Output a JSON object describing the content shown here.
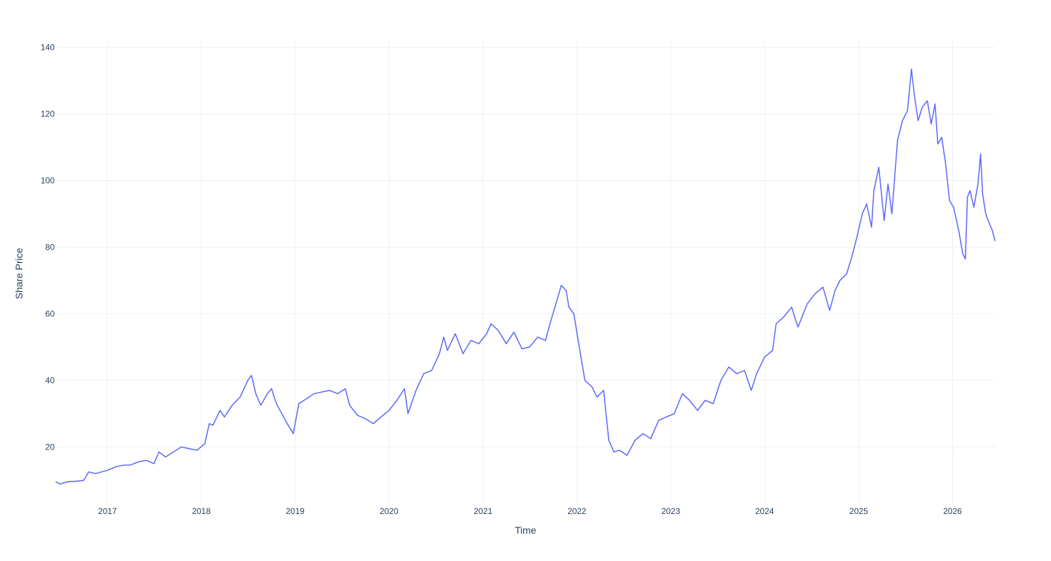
{
  "chart_data": {
    "type": "line",
    "title": "",
    "xlabel": "Time",
    "ylabel": "Share Price",
    "grid": true,
    "xlim": [
      "2016-06-15",
      "2026-06-15"
    ],
    "ylim": [
      2.6,
      141.6
    ],
    "x_ticks": [
      {
        "value": "2017-01-01",
        "label": "2017"
      },
      {
        "value": "2018-01-01",
        "label": "2018"
      },
      {
        "value": "2019-01-01",
        "label": "2019"
      },
      {
        "value": "2020-01-01",
        "label": "2020"
      },
      {
        "value": "2021-01-01",
        "label": "2021"
      },
      {
        "value": "2022-01-01",
        "label": "2022"
      },
      {
        "value": "2023-01-01",
        "label": "2023"
      },
      {
        "value": "2024-01-01",
        "label": "2024"
      },
      {
        "value": "2025-01-01",
        "label": "2025"
      },
      {
        "value": "2026-01-01",
        "label": "2026"
      }
    ],
    "y_ticks": [
      {
        "value": 20,
        "label": "20"
      },
      {
        "value": 40,
        "label": "40"
      },
      {
        "value": 60,
        "label": "60"
      },
      {
        "value": 80,
        "label": "80"
      },
      {
        "value": 100,
        "label": "100"
      },
      {
        "value": 120,
        "label": "120"
      },
      {
        "value": 140,
        "label": "140"
      }
    ],
    "colors": {
      "series": "#636efa",
      "grid": "#ebf0f8",
      "text": "#2a3f5f"
    },
    "series": [
      {
        "color": "#636efa",
        "points": [
          [
            "2016-06-15",
            9.5
          ],
          [
            "2016-07-01",
            8.9
          ],
          [
            "2016-08-01",
            9.6
          ],
          [
            "2016-09-01",
            9.7
          ],
          [
            "2016-10-01",
            10.0
          ],
          [
            "2016-10-20",
            12.5
          ],
          [
            "2016-11-15",
            12.0
          ],
          [
            "2017-01-01",
            13.0
          ],
          [
            "2017-02-01",
            14.0
          ],
          [
            "2017-03-01",
            14.5
          ],
          [
            "2017-04-01",
            14.6
          ],
          [
            "2017-05-01",
            15.5
          ],
          [
            "2017-06-01",
            16.0
          ],
          [
            "2017-07-01",
            15.0
          ],
          [
            "2017-07-20",
            18.5
          ],
          [
            "2017-08-15",
            17.0
          ],
          [
            "2017-09-15",
            18.5
          ],
          [
            "2017-10-15",
            20.0
          ],
          [
            "2017-11-15",
            19.5
          ],
          [
            "2017-12-15",
            19.0
          ],
          [
            "2018-01-15",
            21.0
          ],
          [
            "2018-02-01",
            27.0
          ],
          [
            "2018-02-15",
            26.5
          ],
          [
            "2018-03-15",
            31.0
          ],
          [
            "2018-04-01",
            29.0
          ],
          [
            "2018-05-01",
            32.5
          ],
          [
            "2018-06-01",
            35.0
          ],
          [
            "2018-07-01",
            40.0
          ],
          [
            "2018-07-15",
            41.5
          ],
          [
            "2018-08-01",
            36.0
          ],
          [
            "2018-08-20",
            32.5
          ],
          [
            "2018-09-15",
            36.0
          ],
          [
            "2018-10-01",
            37.5
          ],
          [
            "2018-10-20",
            33.0
          ],
          [
            "2018-11-10",
            30.0
          ],
          [
            "2018-12-01",
            27.0
          ],
          [
            "2018-12-25",
            24.0
          ],
          [
            "2019-01-15",
            33.0
          ],
          [
            "2019-02-15",
            34.5
          ],
          [
            "2019-03-15",
            36.0
          ],
          [
            "2019-04-15",
            36.5
          ],
          [
            "2019-05-15",
            37.0
          ],
          [
            "2019-06-15",
            36.0
          ],
          [
            "2019-07-15",
            37.5
          ],
          [
            "2019-08-01",
            32.5
          ],
          [
            "2019-09-01",
            29.5
          ],
          [
            "2019-10-01",
            28.5
          ],
          [
            "2019-11-01",
            27.0
          ],
          [
            "2019-12-01",
            29.0
          ],
          [
            "2020-01-01",
            31.0
          ],
          [
            "2020-02-01",
            34.0
          ],
          [
            "2020-03-01",
            37.5
          ],
          [
            "2020-03-15",
            30.0
          ],
          [
            "2020-04-15",
            37.0
          ],
          [
            "2020-05-15",
            42.0
          ],
          [
            "2020-06-15",
            43.0
          ],
          [
            "2020-07-15",
            48.0
          ],
          [
            "2020-08-01",
            53.0
          ],
          [
            "2020-08-15",
            49.0
          ],
          [
            "2020-09-15",
            54.0
          ],
          [
            "2020-10-15",
            48.0
          ],
          [
            "2020-11-15",
            52.0
          ],
          [
            "2020-12-15",
            51.0
          ],
          [
            "2021-01-15",
            54.0
          ],
          [
            "2021-02-01",
            57.0
          ],
          [
            "2021-03-01",
            55.0
          ],
          [
            "2021-04-01",
            51.0
          ],
          [
            "2021-05-01",
            54.5
          ],
          [
            "2021-06-01",
            49.5
          ],
          [
            "2021-07-01",
            50.0
          ],
          [
            "2021-08-01",
            53.0
          ],
          [
            "2021-09-01",
            52.0
          ],
          [
            "2021-09-20",
            57.5
          ],
          [
            "2021-10-15",
            64.0
          ],
          [
            "2021-11-01",
            68.5
          ],
          [
            "2021-11-20",
            67.0
          ],
          [
            "2021-12-01",
            62.0
          ],
          [
            "2021-12-20",
            60.0
          ],
          [
            "2022-01-10",
            50.0
          ],
          [
            "2022-02-01",
            40.0
          ],
          [
            "2022-03-01",
            38.0
          ],
          [
            "2022-03-20",
            35.0
          ],
          [
            "2022-04-15",
            37.0
          ],
          [
            "2022-05-05",
            22.0
          ],
          [
            "2022-05-25",
            18.5
          ],
          [
            "2022-06-15",
            19.0
          ],
          [
            "2022-07-15",
            17.5
          ],
          [
            "2022-08-15",
            22.0
          ],
          [
            "2022-09-15",
            24.0
          ],
          [
            "2022-10-15",
            22.5
          ],
          [
            "2022-11-15",
            28.0
          ],
          [
            "2022-12-15",
            29.0
          ],
          [
            "2023-01-15",
            30.0
          ],
          [
            "2023-02-15",
            36.0
          ],
          [
            "2023-03-15",
            34.0
          ],
          [
            "2023-04-15",
            31.0
          ],
          [
            "2023-05-15",
            34.0
          ],
          [
            "2023-06-15",
            33.0
          ],
          [
            "2023-07-15",
            40.0
          ],
          [
            "2023-08-15",
            44.0
          ],
          [
            "2023-09-15",
            42.0
          ],
          [
            "2023-10-15",
            43.0
          ],
          [
            "2023-11-10",
            37.0
          ],
          [
            "2023-12-01",
            42.0
          ],
          [
            "2024-01-01",
            47.0
          ],
          [
            "2024-02-01",
            49.0
          ],
          [
            "2024-02-15",
            57.0
          ],
          [
            "2024-03-15",
            59.0
          ],
          [
            "2024-04-15",
            62.0
          ],
          [
            "2024-05-10",
            56.0
          ],
          [
            "2024-06-15",
            63.0
          ],
          [
            "2024-07-15",
            66.0
          ],
          [
            "2024-08-15",
            68.0
          ],
          [
            "2024-09-10",
            61.0
          ],
          [
            "2024-10-01",
            67.0
          ],
          [
            "2024-10-20",
            70.0
          ],
          [
            "2024-11-15",
            72.0
          ],
          [
            "2024-12-05",
            77.0
          ],
          [
            "2024-12-25",
            83.0
          ],
          [
            "2025-01-15",
            90.0
          ],
          [
            "2025-02-01",
            93.0
          ],
          [
            "2025-02-20",
            86.0
          ],
          [
            "2025-03-01",
            97.0
          ],
          [
            "2025-03-20",
            104.0
          ],
          [
            "2025-04-10",
            88.0
          ],
          [
            "2025-04-25",
            99.0
          ],
          [
            "2025-05-10",
            90.0
          ],
          [
            "2025-06-01",
            112.0
          ],
          [
            "2025-06-20",
            118.0
          ],
          [
            "2025-07-10",
            121.0
          ],
          [
            "2025-07-25",
            133.5
          ],
          [
            "2025-08-05",
            126.0
          ],
          [
            "2025-08-20",
            118.0
          ],
          [
            "2025-09-05",
            122.0
          ],
          [
            "2025-09-25",
            124.0
          ],
          [
            "2025-10-10",
            117.0
          ],
          [
            "2025-10-25",
            123.0
          ],
          [
            "2025-11-05",
            111.0
          ],
          [
            "2025-11-20",
            113.0
          ],
          [
            "2025-12-05",
            105.0
          ],
          [
            "2025-12-20",
            94.0
          ],
          [
            "2026-01-05",
            92.0
          ],
          [
            "2026-01-25",
            85.0
          ],
          [
            "2026-02-10",
            78.0
          ],
          [
            "2026-02-20",
            76.5
          ],
          [
            "2026-02-28",
            95.0
          ],
          [
            "2026-03-10",
            97.0
          ],
          [
            "2026-03-25",
            92.0
          ],
          [
            "2026-04-10",
            99.0
          ],
          [
            "2026-04-20",
            108.0
          ],
          [
            "2026-04-28",
            96.0
          ],
          [
            "2026-05-10",
            90.0
          ],
          [
            "2026-05-25",
            87.0
          ],
          [
            "2026-06-05",
            85.0
          ],
          [
            "2026-06-15",
            82.0
          ]
        ]
      }
    ]
  }
}
